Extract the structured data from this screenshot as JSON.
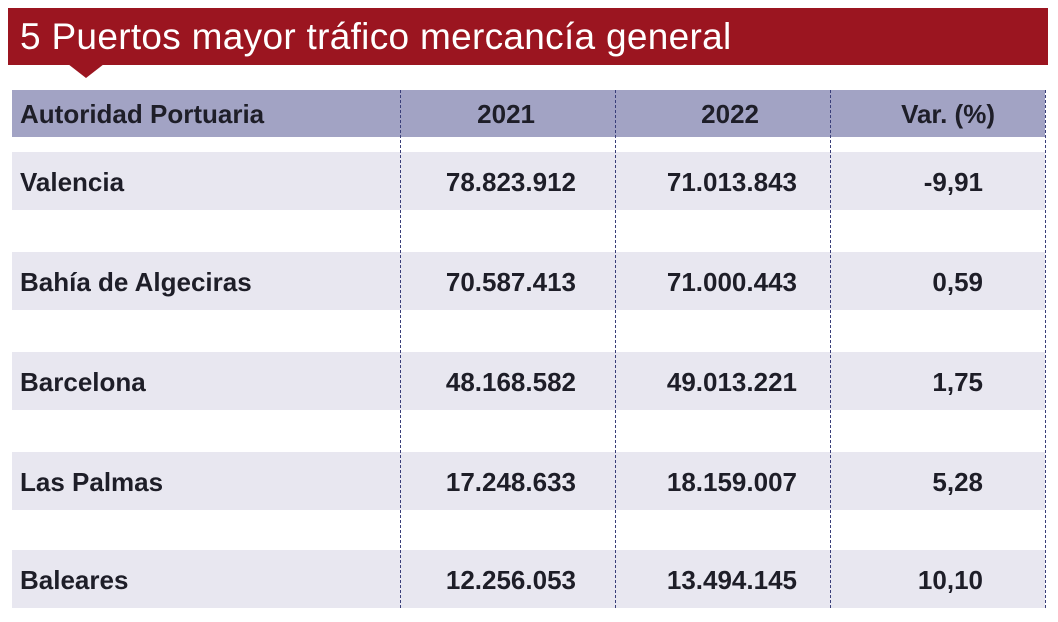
{
  "title": "5 Puertos mayor tráfico mercancía general",
  "colors": {
    "title_bg": "#9b1520",
    "header_bg": "#a2a3c4",
    "row_bg": "#e8e7f0",
    "divider": "#3a3f7a"
  },
  "chart_data": {
    "type": "table",
    "title": "5 Puertos mayor tráfico mercancía general",
    "columns": [
      "Autoridad Portuaria",
      "2021",
      "2022",
      "Var. (%)"
    ],
    "rows": [
      [
        "Valencia",
        "78.823.912",
        "71.013.843",
        "-9,91"
      ],
      [
        "Bahía de Algeciras",
        "70.587.413",
        "71.000.443",
        "0,59"
      ],
      [
        "Barcelona",
        "48.168.582",
        "49.013.221",
        "1,75"
      ],
      [
        "Las Palmas",
        "17.248.633",
        "18.159.007",
        "5,28"
      ],
      [
        "Baleares",
        "12.256.053",
        "13.494.145",
        "10,10"
      ]
    ]
  }
}
